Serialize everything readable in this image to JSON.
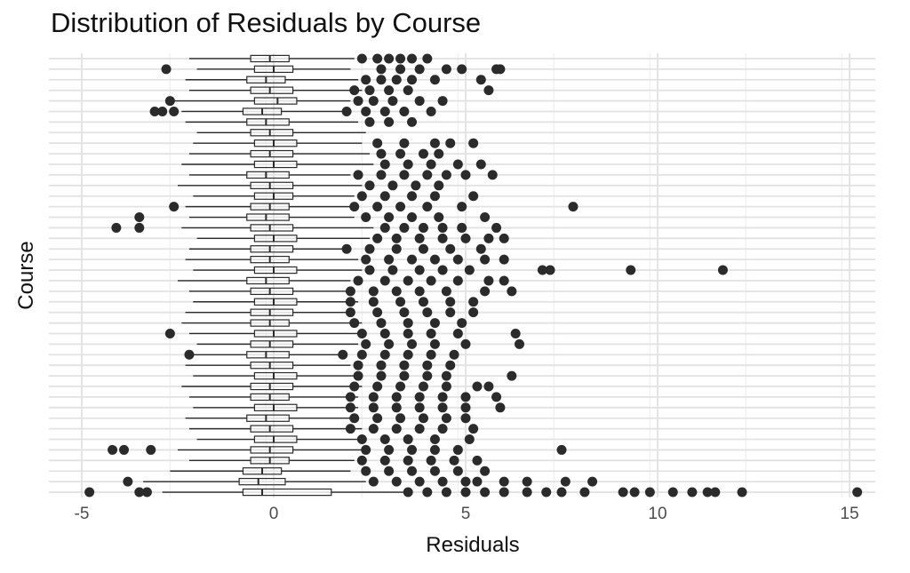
{
  "chart_data": {
    "type": "boxplot",
    "orientation": "horizontal",
    "title": "Distribution of Residuals by Course",
    "xlabel": "Residuals",
    "ylabel": "Course",
    "xlim": [
      -5.2,
      15.6
    ],
    "x_ticks": [
      -5,
      0,
      5,
      10,
      15
    ],
    "y_tick_labels_shown": false,
    "grid": true,
    "legend": "none",
    "n_categories": 42,
    "colors": {
      "box": "#2b2b2b",
      "point": "#2b2b2b",
      "grid_major": "#e2e2e2",
      "grid_minor": "#f1f1f1"
    },
    "series": [
      {
        "q1": -0.6,
        "median": -0.1,
        "q3": 0.4,
        "whisker_low": -2.2,
        "whisker_high": 2.1,
        "outliers": [
          2.3,
          2.7,
          3.0,
          3.3,
          3.6,
          4.0
        ]
      },
      {
        "q1": -0.5,
        "median": 0.0,
        "q3": 0.5,
        "whisker_low": -2.0,
        "whisker_high": 2.0,
        "outliers": [
          -2.8,
          2.8,
          3.3,
          3.8,
          4.5,
          4.9,
          5.8,
          5.9
        ]
      },
      {
        "q1": -0.7,
        "median": -0.2,
        "q3": 0.3,
        "whisker_low": -2.3,
        "whisker_high": 2.2,
        "outliers": [
          2.4,
          2.8,
          3.2,
          3.6,
          4.2,
          5.4
        ]
      },
      {
        "q1": -0.6,
        "median": -0.1,
        "q3": 0.5,
        "whisker_low": -2.2,
        "whisker_high": 2.3,
        "outliers": [
          2.1,
          2.5,
          3.0,
          3.5,
          5.6
        ]
      },
      {
        "q1": -0.5,
        "median:": 0,
        "median": 0.1,
        "q3": 0.6,
        "whisker_low": -2.6,
        "whisker_high": 2.0,
        "outliers": [
          -2.7,
          2.2,
          2.6,
          3.1,
          3.8,
          4.4
        ]
      },
      {
        "q1": -0.8,
        "median": -0.3,
        "q3": 0.2,
        "whisker_low": -2.4,
        "whisker_high": 1.8,
        "outliers": [
          -3.1,
          -2.9,
          -2.6,
          1.9,
          2.4,
          2.9,
          3.4,
          4.1
        ]
      },
      {
        "q1": -0.7,
        "median": -0.2,
        "q3": 0.4,
        "whisker_low": -2.3,
        "whisker_high": 2.2,
        "outliers": [
          2.5,
          3.0,
          3.6
        ]
      },
      {
        "q1": -0.6,
        "median": -0.1,
        "q3": 0.5,
        "whisker_low": -2.0,
        "whisker_high": 2.4,
        "outliers": []
      },
      {
        "q1": -0.5,
        "median": 0.0,
        "q3": 0.6,
        "whisker_low": -2.1,
        "whisker_high": 2.3,
        "outliers": [
          2.7,
          3.4,
          4.2,
          4.6,
          5.2
        ]
      },
      {
        "q1": -0.6,
        "median": -0.1,
        "q3": 0.5,
        "whisker_low": -2.2,
        "whisker_high": 2.5,
        "outliers": [
          2.8,
          3.3,
          3.9,
          4.3
        ]
      },
      {
        "q1": -0.5,
        "median": 0.0,
        "q3": 0.6,
        "whisker_low": -2.4,
        "whisker_high": 2.6,
        "outliers": [
          2.9,
          3.5,
          4.1,
          4.8,
          5.4
        ]
      },
      {
        "q1": -0.7,
        "median": -0.2,
        "q3": 0.4,
        "whisker_low": -2.2,
        "whisker_high": 2.0,
        "outliers": [
          2.2,
          2.8,
          3.4,
          4.0,
          4.5,
          5.0,
          5.7
        ]
      },
      {
        "q1": -0.6,
        "median": -0.1,
        "q3": 0.5,
        "whisker_low": -2.5,
        "whisker_high": 2.3,
        "outliers": [
          2.5,
          3.1,
          3.7,
          4.3
        ]
      },
      {
        "q1": -0.5,
        "median": 0.0,
        "q3": 0.5,
        "whisker_low": -2.1,
        "whisker_high": 2.1,
        "outliers": [
          2.3,
          2.9,
          3.6,
          4.2,
          5.2
        ]
      },
      {
        "q1": -0.6,
        "median": -0.1,
        "q3": 0.4,
        "whisker_low": -2.3,
        "whisker_high": 2.0,
        "outliers": [
          -2.6,
          2.1,
          2.7,
          3.3,
          4.0,
          4.9,
          7.8
        ]
      },
      {
        "q1": -0.7,
        "median": -0.2,
        "q3": 0.4,
        "whisker_low": -2.2,
        "whisker_high": 2.1,
        "outliers": [
          -3.5,
          2.4,
          3.0,
          3.6,
          4.3,
          5.5
        ]
      },
      {
        "q1": -0.6,
        "median": -0.1,
        "q3": 0.5,
        "whisker_low": -2.4,
        "whisker_high": 2.6,
        "outliers": [
          -4.1,
          -3.5,
          2.9,
          3.4,
          3.9,
          4.4,
          4.9,
          5.8
        ]
      },
      {
        "q1": -0.5,
        "median": 0.0,
        "q3": 0.6,
        "whisker_low": -2.0,
        "whisker_high": 2.5,
        "outliers": [
          2.7,
          3.2,
          3.8,
          4.4,
          5.0,
          5.6,
          6.0
        ]
      },
      {
        "q1": -0.6,
        "median": -0.1,
        "q3": 0.5,
        "whisker_low": -2.2,
        "whisker_high": 2.0,
        "outliers": [
          1.9,
          2.5,
          3.2,
          3.9,
          4.6,
          5.4
        ]
      },
      {
        "q1": -0.6,
        "median": -0.1,
        "q3": 0.4,
        "whisker_low": -2.3,
        "whisker_high": 2.2,
        "outliers": [
          2.4,
          3.0,
          3.6,
          4.2,
          4.8,
          5.5,
          6.0
        ]
      },
      {
        "q1": -0.5,
        "median": 0.0,
        "q3": 0.6,
        "whisker_low": -2.1,
        "whisker_high": 2.3,
        "outliers": [
          2.5,
          3.1,
          3.8,
          4.4,
          5.1,
          7.0,
          7.2,
          9.3,
          11.7
        ]
      },
      {
        "q1": -0.7,
        "median": -0.2,
        "q3": 0.4,
        "whisker_low": -2.5,
        "whisker_high": 2.0,
        "outliers": [
          2.2,
          2.9,
          3.5,
          4.1,
          4.8,
          5.6,
          6.0
        ]
      },
      {
        "q1": -0.6,
        "median": -0.1,
        "q3": 0.5,
        "whisker_low": -2.2,
        "whisker_high": 2.1,
        "outliers": [
          2.0,
          2.6,
          3.2,
          3.8,
          4.5,
          5.5,
          6.2
        ]
      },
      {
        "q1": -0.5,
        "median": 0.0,
        "q3": 0.6,
        "whisker_low": -2.1,
        "whisker_high": 2.2,
        "outliers": [
          2.0,
          2.6,
          3.3,
          3.9,
          4.6,
          5.2
        ]
      },
      {
        "q1": -0.6,
        "median": -0.1,
        "q3": 0.5,
        "whisker_low": -2.3,
        "whisker_high": 2.1,
        "outliers": [
          2.0,
          2.7,
          3.4,
          4.0,
          4.6,
          5.2
        ]
      },
      {
        "q1": -0.6,
        "median": -0.1,
        "q3": 0.4,
        "whisker_low": -2.4,
        "whisker_high": 2.3,
        "outliers": [
          2.1,
          2.8,
          3.5,
          4.2,
          4.9
        ]
      },
      {
        "q1": -0.5,
        "median": 0.0,
        "q3": 0.6,
        "whisker_low": -2.2,
        "whisker_high": 2.4,
        "outliers": [
          -2.7,
          2.3,
          2.9,
          3.5,
          4.1,
          4.8,
          6.3
        ]
      },
      {
        "q1": -0.6,
        "median": -0.1,
        "q3": 0.5,
        "whisker_low": -2.0,
        "whisker_high": 2.2,
        "outliers": [
          2.4,
          3.0,
          3.6,
          4.2,
          5.0,
          6.4
        ]
      },
      {
        "q1": -0.7,
        "median": -0.2,
        "q3": 0.4,
        "whisker_low": -2.2,
        "whisker_high": 1.8,
        "outliers": [
          -2.2,
          1.8,
          2.3,
          2.9,
          3.5,
          4.1,
          4.7
        ]
      },
      {
        "q1": -0.6,
        "median": -0.1,
        "q3": 0.5,
        "whisker_low": -2.3,
        "whisker_high": 2.0,
        "outliers": [
          2.2,
          2.8,
          3.4,
          4.0,
          4.6
        ]
      },
      {
        "q1": -0.5,
        "median": 0.0,
        "q3": 0.6,
        "whisker_low": -2.1,
        "whisker_high": 2.1,
        "outliers": [
          2.2,
          2.8,
          3.4,
          4.0,
          4.5,
          6.2
        ]
      },
      {
        "q1": -0.6,
        "median": -0.1,
        "q3": 0.5,
        "whisker_low": -2.4,
        "whisker_high": 2.3,
        "outliers": [
          2.1,
          2.7,
          3.3,
          3.9,
          4.5,
          5.3,
          5.6
        ]
      },
      {
        "q1": -0.6,
        "median": -0.1,
        "q3": 0.4,
        "whisker_low": -2.2,
        "whisker_high": 2.2,
        "outliers": [
          2.0,
          2.6,
          3.2,
          3.8,
          4.4,
          5.0,
          5.8
        ]
      },
      {
        "q1": -0.5,
        "median": 0.0,
        "q3": 0.6,
        "whisker_low": -2.1,
        "whisker_high": 2.2,
        "outliers": [
          2.0,
          2.6,
          3.2,
          3.8,
          4.4,
          5.0,
          5.9
        ]
      },
      {
        "q1": -0.7,
        "median": -0.2,
        "q3": 0.4,
        "whisker_low": -2.3,
        "whisker_high": 2.0,
        "outliers": [
          2.1,
          2.7,
          3.3,
          3.9,
          4.5,
          5.0
        ]
      },
      {
        "q1": -0.6,
        "median": -0.1,
        "q3": 0.5,
        "whisker_low": -2.2,
        "whisker_high": 2.3,
        "outliers": [
          2.0,
          2.6,
          3.2,
          3.8,
          4.4,
          5.2
        ]
      },
      {
        "q1": -0.5,
        "median": 0.0,
        "q3": 0.6,
        "whisker_low": -2.0,
        "whisker_high": 2.2,
        "outliers": [
          2.3,
          2.9,
          3.5,
          4.2,
          5.1
        ]
      },
      {
        "q1": -0.6,
        "median": -0.1,
        "q3": 0.5,
        "whisker_low": -2.5,
        "whisker_high": 2.4,
        "outliers": [
          -4.2,
          -3.9,
          -3.2,
          2.4,
          3.0,
          3.6,
          4.2,
          4.8,
          7.5
        ]
      },
      {
        "q1": -0.6,
        "median": -0.1,
        "q3": 0.4,
        "whisker_low": -2.2,
        "whisker_high": 2.1,
        "outliers": [
          2.3,
          2.9,
          3.5,
          4.1,
          4.7,
          5.3
        ]
      },
      {
        "q1": -0.8,
        "median": -0.3,
        "q3": 0.2,
        "whisker_low": -2.7,
        "whisker_high": 2.0,
        "outliers": [
          2.4,
          3.0,
          3.6,
          4.2,
          4.8,
          5.5
        ]
      },
      {
        "q1": -0.9,
        "median": -0.4,
        "q3": 0.3,
        "whisker_low": -3.4,
        "whisker_high": 2.4,
        "outliers": [
          -3.8,
          2.6,
          3.2,
          3.8,
          4.4,
          5.0,
          5.3,
          6.0,
          6.6,
          7.6,
          8.3
        ]
      },
      {
        "q1": -0.8,
        "median": -0.3,
        "q3": 1.5,
        "whisker_low": -2.9,
        "whisker_high": 3.6,
        "outliers": [
          -4.8,
          -3.5,
          -3.3,
          3.5,
          4.0,
          4.5,
          5.0,
          5.5,
          6.0,
          6.6,
          7.1,
          7.5,
          8.1,
          9.1,
          9.4,
          9.8,
          10.4,
          10.9,
          11.3,
          11.5,
          12.2,
          15.2
        ]
      }
    ]
  }
}
